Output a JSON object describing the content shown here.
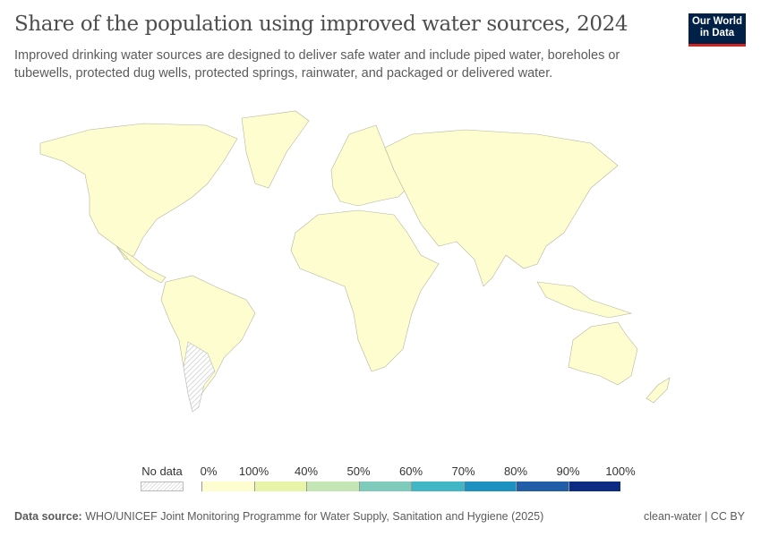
{
  "title": "Share of the population using improved water sources, 2024",
  "subtitle": "Improved drinking water sources are designed to deliver safe water and include piped water, boreholes or tubewells, protected dug wells, protected springs, rainwater, and packaged or delivered water.",
  "logo": {
    "line1": "Our World",
    "line2": "in Data"
  },
  "legend": {
    "no_data": "No data",
    "labels": [
      "0%",
      "100%",
      "40%",
      "50%",
      "60%",
      "70%",
      "80%",
      "90%",
      "100%"
    ],
    "colors": [
      "#fdfdd0",
      "#e8f5a8",
      "#c3e6b4",
      "#7ecbbb",
      "#41b6c4",
      "#1d91c0",
      "#225ea8",
      "#0c2c84"
    ],
    "no_data_pattern": "hatched-grey"
  },
  "map": {
    "land_color": "#fdfdd0",
    "no_data_regions": [
      "Argentina"
    ]
  },
  "footer": {
    "source_label": "Data source:",
    "source": "WHO/UNICEF Joint Monitoring Programme for Water Supply, Sanitation and Hygiene (2025)",
    "license": "clean-water | CC BY"
  }
}
